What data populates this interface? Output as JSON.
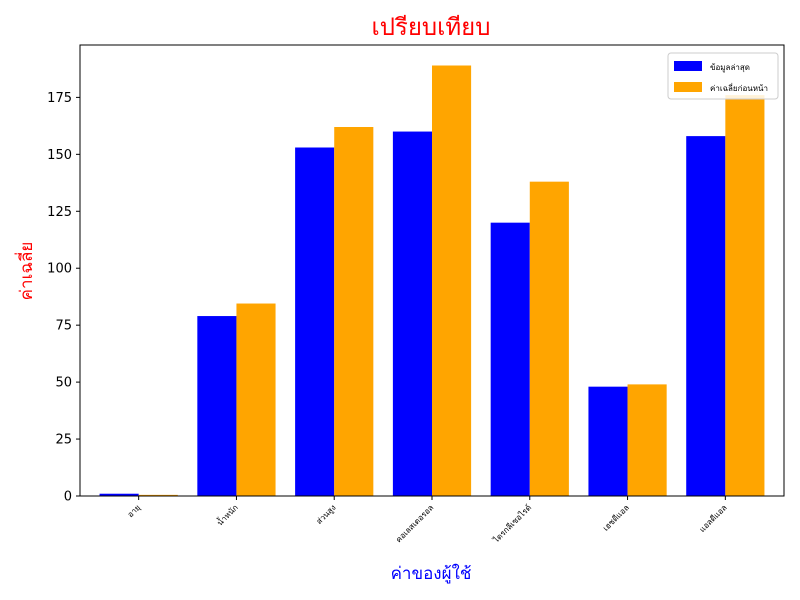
{
  "chart_data": {
    "type": "bar",
    "title": "เปรียบเทียบ",
    "xlabel": "ค่าของผู้ใช้",
    "ylabel": "ค่าเฉลี่ย",
    "categories": [
      "อายุ",
      "น้ำหนัก",
      "ส่วนสูง",
      "คอเลสเตอรอล",
      "ไตรกลีเซอไรด์",
      "เฮชดีแอล",
      "แอลดีแอล"
    ],
    "series": [
      {
        "name": "ข้อมูลล่าสุด",
        "color": "#0000ff",
        "values": [
          1,
          79,
          153,
          160,
          120,
          48,
          158
        ]
      },
      {
        "name": "ค่าเฉลี่ยก่อนหน้า",
        "color": "#ffa500",
        "values": [
          0.5,
          84.5,
          162,
          189,
          138,
          49,
          176
        ]
      }
    ],
    "yticks": [
      0,
      25,
      50,
      75,
      100,
      125,
      150,
      175
    ],
    "ylim": [
      0,
      198
    ],
    "title_color": "#ff0000",
    "xlabel_color": "#0000ff",
    "ylabel_color": "#ff0000",
    "legend_position": "top-right",
    "grid": false
  }
}
